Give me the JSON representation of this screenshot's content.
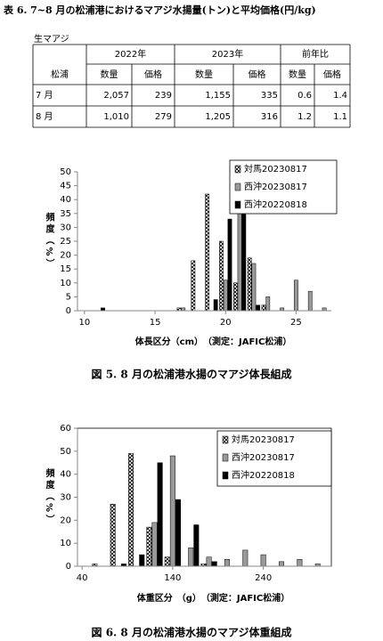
{
  "table": {
    "title": "表 6. 7~8 月の松浦港におけるマアジ水揚量(トン)と平均価格(円/kg)",
    "label": "生マアジ",
    "header_groups": [
      "2022年",
      "2023年",
      "前年比"
    ],
    "subheader": [
      "松浦",
      "数量",
      "価格",
      "数量",
      "価格",
      "数量",
      "価格"
    ],
    "rows": [
      [
        "7 月",
        "2,057",
        "239",
        "1,155",
        "335",
        "0.6",
        "1.4"
      ],
      [
        "8 月",
        "1,010",
        "279",
        "1,205",
        "316",
        "1.2",
        "1.1"
      ]
    ]
  },
  "chart_data": [
    {
      "type": "bar",
      "title": "図 5.  8 月の松浦港水揚のマアジ体長組成",
      "xlabel": "体長区分（cm）　（測定：JAFIC松浦）",
      "ylabel": "頻度（%）",
      "x": [
        11,
        17,
        18,
        19,
        20,
        21,
        22,
        23,
        24,
        25,
        26,
        27
      ],
      "series": [
        {
          "name": "対馬20230817",
          "color": "#ffffff",
          "pattern": "crosshatch",
          "values": [
            0,
            1,
            18,
            42,
            25,
            10,
            19,
            2,
            0,
            0,
            0,
            0
          ]
        },
        {
          "name": "西沖20230817",
          "color": "#999999",
          "values": [
            0,
            1,
            0,
            0,
            11,
            36,
            17,
            5,
            1,
            11,
            7,
            1
          ]
        },
        {
          "name": "西沖20220818",
          "color": "#000000",
          "values": [
            1,
            0,
            0,
            4,
            33,
            43,
            2,
            0,
            0,
            0,
            0,
            0
          ]
        }
      ],
      "xlim": [
        9.5,
        27.5
      ],
      "xticks": [
        10,
        15,
        20,
        25
      ],
      "ylim": [
        0,
        50
      ],
      "yticks": [
        0,
        5,
        10,
        15,
        20,
        25,
        30,
        35,
        40,
        45,
        50
      ],
      "legend": "upper right",
      "frame": false
    },
    {
      "type": "bar",
      "title": "図 6.  8 月の松浦港水揚のマアジ体重組成",
      "xlabel": "体重区分　（g）　（測定：JAFIC松浦）",
      "ylabel": "頻度（%）",
      "x": [
        60,
        80,
        100,
        120,
        140,
        160,
        180,
        200,
        220,
        240,
        260,
        280,
        300
      ],
      "series": [
        {
          "name": "対馬20230817",
          "color": "#ffffff",
          "pattern": "crosshatch",
          "values": [
            1,
            27,
            49,
            17,
            4,
            0,
            1,
            0,
            0,
            0,
            0,
            0,
            0
          ]
        },
        {
          "name": "西沖20230817",
          "color": "#999999",
          "values": [
            0,
            0,
            0,
            19,
            48,
            8,
            4,
            3,
            7,
            5,
            2,
            3,
            1
          ]
        },
        {
          "name": "西沖20220818",
          "color": "#000000",
          "values": [
            0,
            1,
            5,
            45,
            29,
            18,
            2,
            0,
            0,
            0,
            0,
            0,
            0
          ]
        }
      ],
      "xlim": [
        35,
        315
      ],
      "xticks": [
        40,
        140,
        240
      ],
      "ylim": [
        0,
        60
      ],
      "yticks": [
        0,
        10,
        20,
        30,
        40,
        50,
        60
      ],
      "legend": "upper right",
      "frame": true
    }
  ]
}
